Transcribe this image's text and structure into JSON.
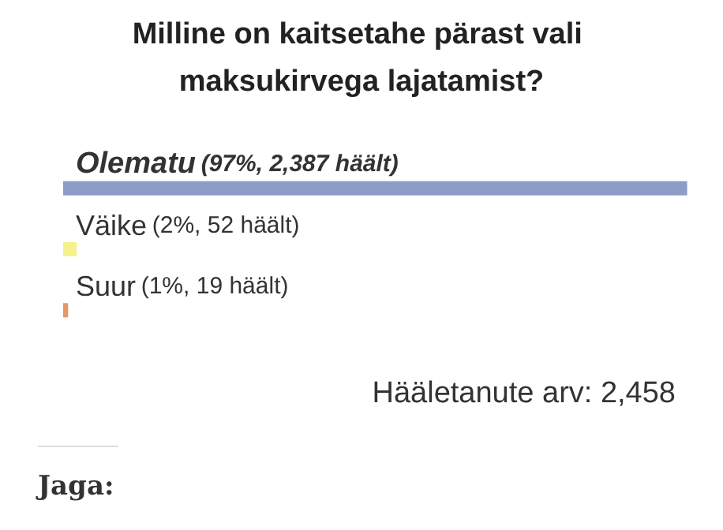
{
  "chart_data": {
    "type": "bar",
    "orientation": "horizontal",
    "title": "Milline on kaitsetahe pärast vali maksukirvega lajatamist?",
    "categories": [
      "Olematu",
      "Väike",
      "Suur"
    ],
    "values": [
      2387,
      52,
      19
    ],
    "colors": [
      "#8e9dc6",
      "#f6f18c",
      "#e8956a"
    ],
    "value_labels": [
      "(97%, 2,387 häält)",
      "(2%, 52 häält)",
      "(1%, 19 häält)"
    ],
    "annotations": [
      "Hääletanute arv: 2,458",
      "Jaga:"
    ],
    "grid": false
  }
}
